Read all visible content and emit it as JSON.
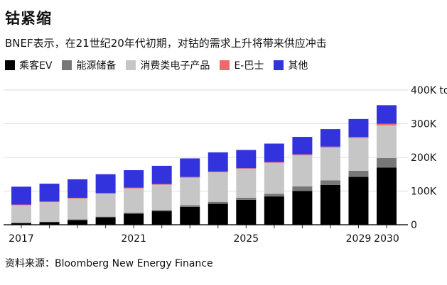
{
  "title": "钴紧缩",
  "subtitle": "BNEF表示，在21世纪20年代初期，对钴的需求上升将带来供应冲击",
  "source": "资料来源：Bloomberg New Energy Finance",
  "chart_data": {
    "type": "bar",
    "stacked": true,
    "categories": [
      "2017",
      "2018",
      "2019",
      "2020",
      "2021",
      "2022",
      "2023",
      "2024",
      "2025",
      "2026",
      "2027",
      "2028",
      "2029",
      "2030"
    ],
    "x_tick_labels": [
      "2017",
      "",
      "",
      "",
      "2021",
      "",
      "",
      "",
      "2025",
      "",
      "",
      "",
      "2029",
      "2030"
    ],
    "ylim": [
      0,
      400
    ],
    "y_ticks": [
      0,
      100,
      200,
      300,
      400
    ],
    "y_tick_labels": [
      "0",
      "100K",
      "200K",
      "300K",
      "400K tons"
    ],
    "grid": true,
    "legend_position": "top-left",
    "series": [
      {
        "name": "乘客EV",
        "color": "#000000",
        "values": [
          5,
          8,
          14,
          22,
          33,
          40,
          53,
          62,
          74,
          84,
          100,
          118,
          142,
          170
        ]
      },
      {
        "name": "能源储备",
        "color": "#777777",
        "values": [
          1,
          1,
          2,
          2,
          3,
          4,
          5,
          6,
          6,
          8,
          14,
          14,
          18,
          28
        ]
      },
      {
        "name": "消费类电子产品",
        "color": "#c6c6c6",
        "values": [
          52,
          58,
          62,
          68,
          72,
          75,
          82,
          88,
          86,
          92,
          92,
          97,
          97,
          97
        ]
      },
      {
        "name": "E-巴士",
        "color": "#ee6a6a",
        "values": [
          2,
          2,
          2,
          2,
          2,
          2,
          2,
          2,
          2,
          2,
          3,
          3,
          4,
          5
        ]
      },
      {
        "name": "其他",
        "color": "#3333dd",
        "values": [
          53,
          53,
          55,
          56,
          52,
          54,
          55,
          57,
          54,
          55,
          52,
          52,
          53,
          55
        ]
      }
    ]
  }
}
